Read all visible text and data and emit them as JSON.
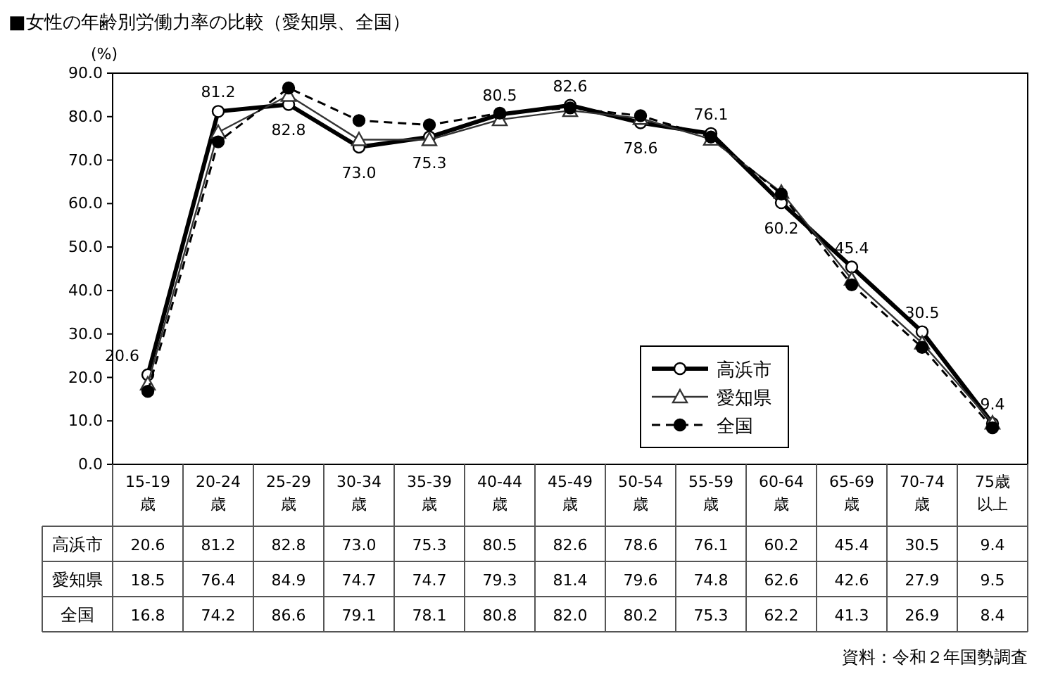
{
  "chart_data": {
    "type": "line",
    "title": "■女性の年齢別労働力率の比較（愛知県、全国）",
    "ylabel": "(%)",
    "categories": [
      "15-19歳",
      "20-24歳",
      "25-29歳",
      "30-34歳",
      "35-39歳",
      "40-44歳",
      "45-49歳",
      "50-54歳",
      "55-59歳",
      "60-64歳",
      "65-69歳",
      "70-74歳",
      "75歳以上"
    ],
    "series": [
      {
        "name": "高浜市",
        "color": "#000000",
        "marker": "circle",
        "line_style": "solid",
        "values": [
          20.6,
          81.2,
          82.8,
          73.0,
          75.3,
          80.5,
          82.6,
          78.6,
          76.1,
          60.2,
          45.4,
          30.5,
          9.4
        ],
        "value_labels": [
          "20.6",
          "81.2",
          "82.8",
          "73.0",
          "75.3",
          "80.5",
          "82.6",
          "78.6",
          "76.1",
          "60.2",
          "45.4",
          "30.5",
          "9.4"
        ]
      },
      {
        "name": "愛知県",
        "color": "#333333",
        "marker": "triangle",
        "line_style": "solid",
        "values": [
          18.5,
          76.4,
          84.9,
          74.7,
          74.7,
          79.3,
          81.4,
          79.6,
          74.8,
          62.6,
          42.6,
          27.9,
          9.5
        ],
        "value_labels": [
          "18.5",
          "76.4",
          "84.9",
          "74.7",
          "74.7",
          "79.3",
          "81.4",
          "79.6",
          "74.8",
          "62.6",
          "42.6",
          "27.9",
          "9.5"
        ]
      },
      {
        "name": "全国",
        "color": "#000000",
        "marker": "circle",
        "line_style": "dashed",
        "values": [
          16.8,
          74.2,
          86.6,
          79.1,
          78.1,
          80.8,
          82.0,
          80.2,
          75.3,
          62.2,
          41.3,
          26.9,
          8.4
        ],
        "value_labels": [
          "16.8",
          "74.2",
          "86.6",
          "79.1",
          "78.1",
          "80.8",
          "82.0",
          "80.2",
          "75.3",
          "62.2",
          "41.3",
          "26.9",
          "8.4"
        ]
      }
    ],
    "ylim": [
      0,
      90
    ],
    "yticks": [
      {
        "value": 0,
        "label": "0.0"
      },
      {
        "value": 10,
        "label": "10.0"
      },
      {
        "value": 20,
        "label": "20.0"
      },
      {
        "value": 30,
        "label": "30.0"
      },
      {
        "value": 40,
        "label": "40.0"
      },
      {
        "value": 50,
        "label": "50.0"
      },
      {
        "value": 60,
        "label": "60.0"
      },
      {
        "value": 70,
        "label": "70.0"
      },
      {
        "value": 80,
        "label": "80.0"
      },
      {
        "value": 90,
        "label": "90.0"
      }
    ],
    "legend": "bottom right",
    "annotations": [
      "資料：令和２年国勢調査"
    ]
  }
}
